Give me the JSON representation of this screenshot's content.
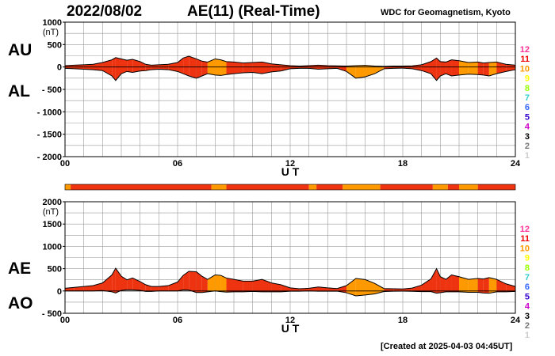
{
  "header": {
    "date": "2022/08/02",
    "title": "AE(11) (Real-Time)",
    "source": "WDC for Geomagnetism, Kyoto"
  },
  "footer": {
    "created": "[Created at 2025-04-03 04:45UT]"
  },
  "panel_labels": {
    "au": "AU",
    "al": "AL",
    "ae": "AE",
    "ao": "AO"
  },
  "station_legend": {
    "labels": [
      "12",
      "11",
      "10",
      "9",
      "8",
      "7",
      "6",
      "5",
      "4",
      "3",
      "2",
      "1"
    ],
    "colors": [
      "#ff3399",
      "#ee0000",
      "#ff9900",
      "#ffff00",
      "#99ff00",
      "#33cccc",
      "#3366ff",
      "#3300cc",
      "#cc00cc",
      "#000000",
      "#777777",
      "#cccccc"
    ]
  },
  "chart_data": [
    {
      "panel": "AU/AL",
      "type": "area",
      "unit_label": "(nT)",
      "xlabel": "U T",
      "x_ticks": [
        "00",
        "06",
        "12",
        "18",
        "24"
      ],
      "y_ticks": [
        "1000",
        "500",
        "0",
        "- 500",
        "- 1000",
        "- 1500",
        "- 2000"
      ],
      "ylim": [
        -2000,
        1000
      ],
      "xlim": [
        0,
        24
      ],
      "grid": true,
      "series": [
        {
          "x": [
            0,
            0.5,
            1,
            1.5,
            2,
            2.5,
            2.7,
            3,
            3.3,
            3.6,
            4,
            4.3,
            4.6,
            5,
            5.5,
            6,
            6.3,
            6.6,
            7,
            7.3,
            7.6,
            8,
            8.3,
            8.6,
            9,
            9.5,
            10,
            10.5,
            11,
            11.5,
            12,
            12.5,
            13,
            13.5,
            14,
            14.5,
            15,
            15.5,
            16,
            16.5,
            17,
            17.5,
            18,
            18.5,
            19,
            19.5,
            19.8,
            20,
            20.3,
            20.6,
            21,
            21.5,
            22,
            22.3,
            22.6,
            23,
            23.5,
            24
          ],
          "y": [
            30,
            40,
            50,
            60,
            100,
            160,
            210,
            180,
            150,
            170,
            120,
            60,
            40,
            50,
            60,
            100,
            200,
            240,
            180,
            130,
            110,
            180,
            160,
            120,
            110,
            90,
            100,
            110,
            70,
            50,
            30,
            20,
            30,
            40,
            30,
            25,
            20,
            30,
            35,
            20,
            15,
            20,
            20,
            25,
            50,
            120,
            200,
            120,
            110,
            160,
            140,
            100,
            110,
            90,
            100,
            110,
            60,
            40
          ]
        },
        {
          "x": [
            0,
            0.5,
            1,
            1.5,
            2,
            2.5,
            2.7,
            3,
            3.3,
            3.6,
            4,
            4.3,
            4.6,
            5,
            5.5,
            6,
            6.3,
            6.6,
            7,
            7.3,
            7.6,
            8,
            8.3,
            8.6,
            9,
            9.5,
            10,
            10.5,
            11,
            11.5,
            12,
            12.5,
            13,
            13.5,
            14,
            14.5,
            15,
            15.5,
            16,
            16.5,
            17,
            17.5,
            18,
            18.5,
            19,
            19.5,
            19.8,
            20,
            20.3,
            20.6,
            21,
            21.5,
            22,
            22.3,
            22.6,
            23,
            23.5,
            24
          ],
          "y": [
            -30,
            -40,
            -50,
            -60,
            -80,
            -200,
            -300,
            -150,
            -100,
            -120,
            -90,
            -80,
            -60,
            -50,
            -60,
            -100,
            -150,
            -200,
            -250,
            -200,
            -150,
            -180,
            -190,
            -170,
            -150,
            -130,
            -120,
            -150,
            -110,
            -90,
            -40,
            -30,
            -30,
            -50,
            -40,
            -30,
            -100,
            -250,
            -220,
            -150,
            -40,
            -30,
            -25,
            -40,
            -80,
            -150,
            -300,
            -200,
            -150,
            -200,
            -180,
            -160,
            -170,
            -180,
            -200,
            -150,
            -100,
            -60
          ]
        }
      ]
    },
    {
      "panel": "AE/AO",
      "type": "area",
      "unit_label": "(nT)",
      "xlabel": "U T",
      "x_ticks": [
        "00",
        "06",
        "12",
        "18",
        "24"
      ],
      "y_ticks": [
        "2000",
        "1500",
        "1000",
        "500",
        "0",
        "- 500"
      ],
      "ylim": [
        -500,
        2000
      ],
      "xlim": [
        0,
        24
      ],
      "grid": true,
      "series": [
        {
          "x": [
            0,
            0.5,
            1,
            1.5,
            2,
            2.5,
            2.7,
            3,
            3.3,
            3.6,
            4,
            4.3,
            4.6,
            5,
            5.5,
            6,
            6.3,
            6.6,
            7,
            7.3,
            7.6,
            8,
            8.3,
            8.6,
            9,
            9.5,
            10,
            10.5,
            11,
            11.5,
            12,
            12.5,
            13,
            13.5,
            14,
            14.5,
            15,
            15.5,
            16,
            16.5,
            17,
            17.5,
            18,
            18.5,
            19,
            19.5,
            19.8,
            20,
            20.3,
            20.6,
            21,
            21.5,
            22,
            22.3,
            22.6,
            23,
            23.5,
            24
          ],
          "y": [
            60,
            80,
            100,
            120,
            180,
            360,
            510,
            330,
            250,
            290,
            210,
            140,
            100,
            100,
            120,
            200,
            350,
            440,
            430,
            330,
            260,
            360,
            350,
            290,
            260,
            220,
            220,
            260,
            180,
            140,
            70,
            50,
            60,
            90,
            70,
            55,
            120,
            280,
            255,
            170,
            55,
            50,
            45,
            65,
            130,
            270,
            500,
            320,
            260,
            360,
            320,
            260,
            280,
            270,
            300,
            260,
            160,
            100
          ]
        },
        {
          "x": [
            0,
            0.5,
            1,
            1.5,
            2,
            2.5,
            2.7,
            3,
            3.3,
            3.6,
            4,
            4.3,
            4.6,
            5,
            5.5,
            6,
            6.3,
            6.6,
            7,
            7.3,
            7.6,
            8,
            8.3,
            8.6,
            9,
            9.5,
            10,
            10.5,
            11,
            11.5,
            12,
            12.5,
            13,
            13.5,
            14,
            14.5,
            15,
            15.5,
            16,
            16.5,
            17,
            17.5,
            18,
            18.5,
            19,
            19.5,
            19.8,
            20,
            20.3,
            20.6,
            21,
            21.5,
            22,
            22.3,
            22.6,
            23,
            23.5,
            24
          ],
          "y": [
            0,
            0,
            0,
            0,
            10,
            -20,
            -45,
            15,
            25,
            25,
            15,
            -10,
            -10,
            0,
            0,
            0,
            25,
            20,
            -35,
            -35,
            -20,
            0,
            -15,
            -25,
            -20,
            -20,
            -10,
            -20,
            -20,
            -20,
            -5,
            -5,
            0,
            -5,
            -5,
            -3,
            -40,
            -110,
            -90,
            -65,
            -12,
            -5,
            -3,
            -8,
            -15,
            -15,
            -50,
            -40,
            -20,
            -20,
            -20,
            -30,
            -30,
            -45,
            -50,
            -20,
            -20,
            -10
          ]
        }
      ]
    }
  ]
}
